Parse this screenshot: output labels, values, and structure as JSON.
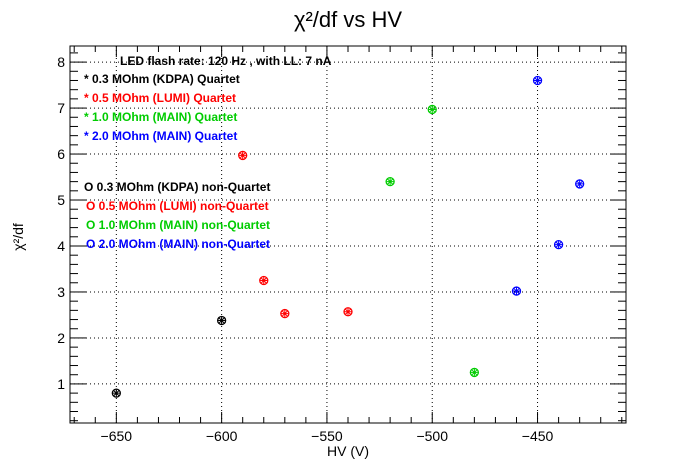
{
  "chart_data": {
    "type": "scatter",
    "title": "χ²/df vs HV",
    "xlabel": "HV (V)",
    "ylabel": "χ²/df",
    "xlim": [
      -672,
      -408
    ],
    "ylim": [
      0.15,
      8.35
    ],
    "x_ticks": [
      -650,
      -600,
      -550,
      -500,
      -450
    ],
    "x_tick_labels": [
      "−650",
      "−600",
      "−550",
      "−500",
      "−450"
    ],
    "y_ticks": [
      1,
      2,
      3,
      4,
      5,
      6,
      7,
      8
    ],
    "y_tick_labels": [
      "1",
      "2",
      "3",
      "4",
      "5",
      "6",
      "7",
      "8"
    ],
    "grid": true,
    "header_note": "LED flash rate: 120 Hz , with LL: 7 nA",
    "legend": [
      {
        "label": "* 0.3 MOhm (KDPA) Quartet",
        "color": "#000000"
      },
      {
        "label": "* 0.5 MOhm (LUMI) Quartet",
        "color": "#ff0000"
      },
      {
        "label": "* 1.0 MOhm (MAIN) Quartet",
        "color": "#00cc00"
      },
      {
        "label": "* 2.0 MOhm (MAIN) Quartet",
        "color": "#0000ff"
      },
      {
        "label": "O 0.3 MOhm (KDPA) non-Quartet",
        "color": "#000000"
      },
      {
        "label": "O 0.5 MOhm (LUMI) non-Quartet",
        "color": "#ff0000"
      },
      {
        "label": "O 1.0 MOhm (MAIN) non-Quartet",
        "color": "#00cc00"
      },
      {
        "label": "O 2.0 MOhm (MAIN) non-Quartet",
        "color": "#0000ff"
      }
    ],
    "series": [
      {
        "color": "#000000",
        "points": [
          {
            "x": -650,
            "y": 0.8
          },
          {
            "x": -600,
            "y": 2.38
          }
        ]
      },
      {
        "color": "#ff0000",
        "points": [
          {
            "x": -590,
            "y": 5.97
          },
          {
            "x": -580,
            "y": 3.25
          },
          {
            "x": -570,
            "y": 2.53
          },
          {
            "x": -540,
            "y": 2.57
          }
        ]
      },
      {
        "color": "#00cc00",
        "points": [
          {
            "x": -520,
            "y": 5.4
          },
          {
            "x": -500,
            "y": 6.97
          },
          {
            "x": -480,
            "y": 1.25
          }
        ]
      },
      {
        "color": "#0000ff",
        "points": [
          {
            "x": -460,
            "y": 3.02
          },
          {
            "x": -450,
            "y": 7.6
          },
          {
            "x": -440,
            "y": 4.03
          },
          {
            "x": -430,
            "y": 5.35
          }
        ]
      }
    ]
  }
}
